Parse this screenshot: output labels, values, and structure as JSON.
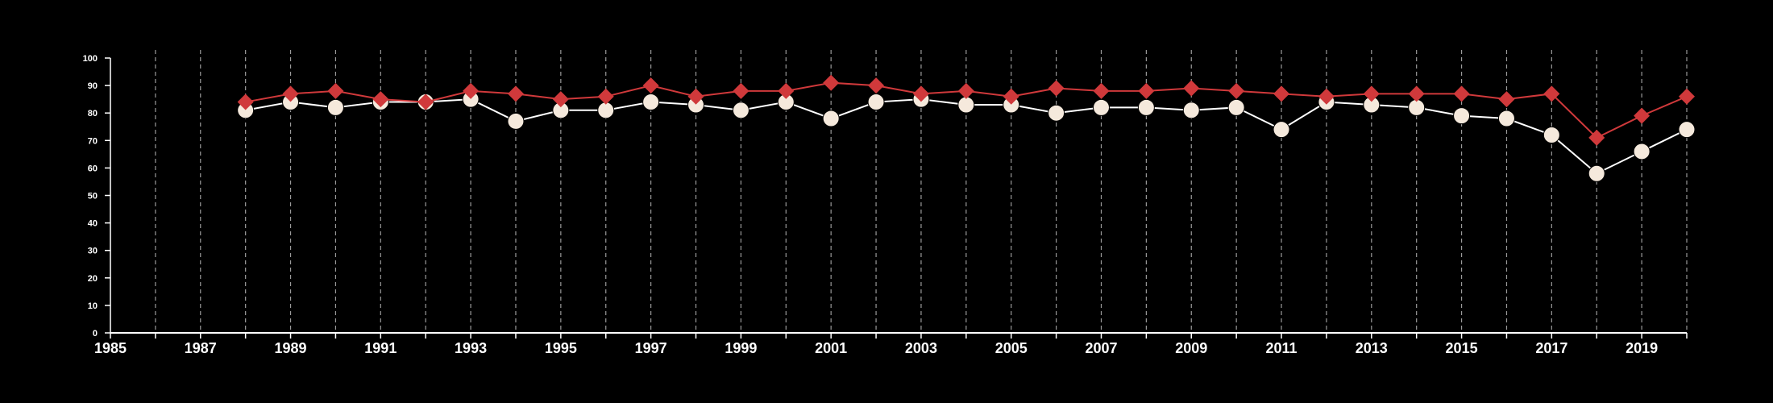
{
  "chart_data": {
    "type": "line",
    "title": "",
    "xlabel": "",
    "ylabel": "",
    "xlim": [
      1985,
      2020
    ],
    "ylim": [
      0,
      100
    ],
    "x_ticks": [
      1985,
      1987,
      1989,
      1991,
      1993,
      1995,
      1997,
      1999,
      2001,
      2003,
      2005,
      2007,
      2009,
      2011,
      2013,
      2015,
      2017,
      2019
    ],
    "y_ticks": [
      0,
      10,
      20,
      30,
      40,
      50,
      60,
      70,
      80,
      90,
      100
    ],
    "vertical_gridlines": "dashed, every year",
    "legend": "none",
    "x": [
      1988,
      1989,
      1990,
      1991,
      1992,
      1993,
      1994,
      1995,
      1996,
      1997,
      1998,
      1999,
      2000,
      2001,
      2002,
      2003,
      2004,
      2005,
      2006,
      2007,
      2008,
      2009,
      2010,
      2011,
      2012,
      2013,
      2014,
      2015,
      2016,
      2017,
      2018,
      2019,
      2020
    ],
    "series": [
      {
        "marker": "diamond",
        "color": "#d0393b",
        "values": [
          84,
          87,
          88,
          85,
          84,
          88,
          87,
          85,
          86,
          90,
          86,
          88,
          88,
          91,
          90,
          87,
          88,
          86,
          89,
          88,
          88,
          89,
          88,
          87,
          86,
          87,
          87,
          87,
          85,
          87,
          71,
          79,
          86
        ]
      },
      {
        "marker": "circle",
        "color": "#f5e9dc",
        "line_color": "#ffffff",
        "values": [
          81,
          84,
          82,
          84,
          84,
          85,
          77,
          81,
          81,
          84,
          83,
          81,
          84,
          78,
          84,
          85,
          83,
          83,
          80,
          82,
          82,
          81,
          82,
          74,
          84,
          83,
          82,
          79,
          78,
          72,
          58,
          66,
          74
        ]
      }
    ]
  }
}
